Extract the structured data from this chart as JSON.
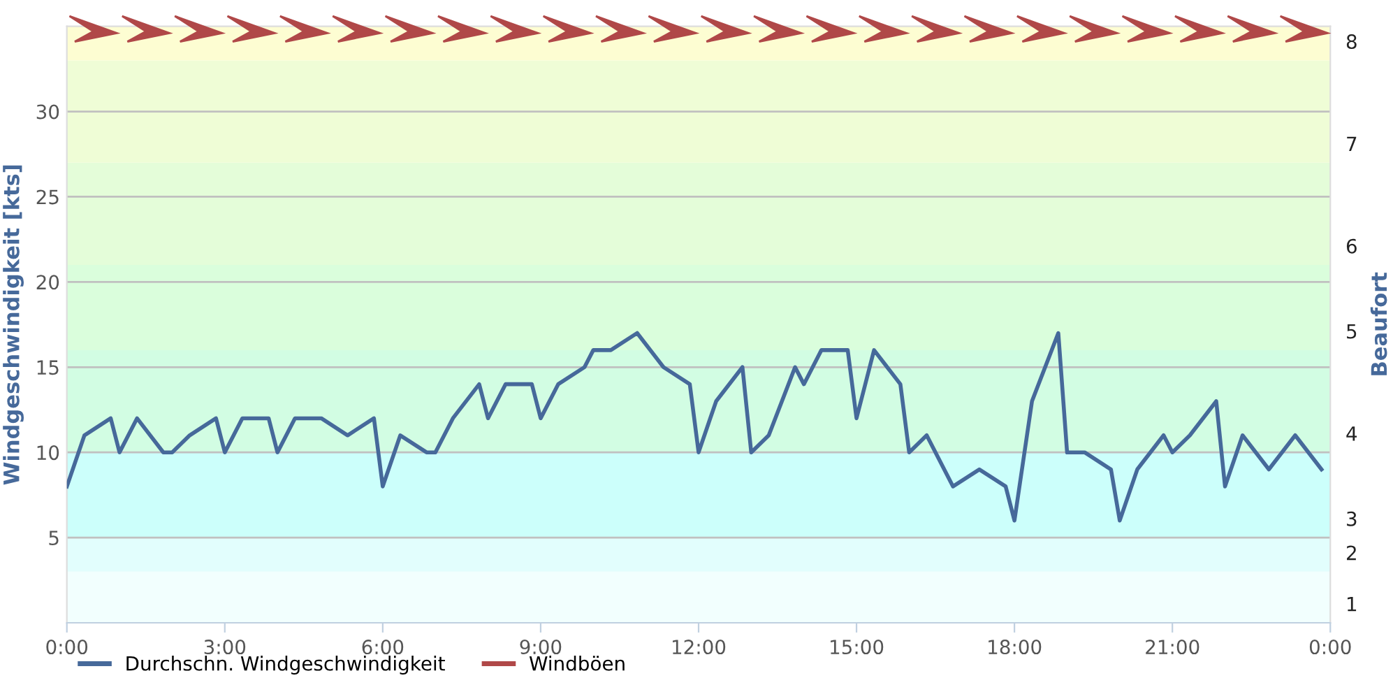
{
  "chart_data": {
    "type": "line",
    "ylabel": "Windgeschwindigkeit [kts]",
    "y2label": "Beaufort",
    "xlim": [
      0,
      24
    ],
    "xticks": [
      {
        "value": 0,
        "label": "0:00"
      },
      {
        "value": 3,
        "label": "3:00"
      },
      {
        "value": 6,
        "label": "6:00"
      },
      {
        "value": 9,
        "label": "9:00"
      },
      {
        "value": 12,
        "label": "12:00"
      },
      {
        "value": 15,
        "label": "15:00"
      },
      {
        "value": 18,
        "label": "18:00"
      },
      {
        "value": 21,
        "label": "21:00"
      },
      {
        "value": 24,
        "label": "0:00"
      }
    ],
    "ylim": [
      0,
      35
    ],
    "yticks": [
      5,
      10,
      15,
      20,
      25,
      30
    ],
    "grid": "y",
    "legend": "bottom left",
    "marker": "none",
    "line_style": "solid",
    "bands": [
      {
        "axis": "y",
        "from": 0,
        "to": 3,
        "color": "#f2fffe",
        "label": "1"
      },
      {
        "axis": "y",
        "from": 3,
        "to": 5,
        "color": "#e2fefd",
        "label": "2"
      },
      {
        "axis": "y",
        "from": 5,
        "to": 10,
        "color": "#ccfffb",
        "label": "3"
      },
      {
        "axis": "y",
        "from": 10,
        "to": 16,
        "color": "#d2fde3",
        "label": "4"
      },
      {
        "axis": "y",
        "from": 16,
        "to": 21,
        "color": "#dafedc",
        "label": "5"
      },
      {
        "axis": "y",
        "from": 21,
        "to": 27,
        "color": "#e4fdd9",
        "label": "6"
      },
      {
        "axis": "y",
        "from": 27,
        "to": 33,
        "color": "#effdd6",
        "label": "7"
      },
      {
        "axis": "y",
        "from": 33,
        "to": 35,
        "color": "#fdfdd2",
        "label": "8"
      }
    ],
    "series": [
      {
        "name": "Durchschn. Windgeschwindigkeit",
        "color": "#46699a",
        "x": [
          0,
          0.333,
          0.833,
          1,
          1.333,
          1.833,
          2,
          2.333,
          2.833,
          3,
          3.333,
          3.833,
          4,
          4.333,
          4.833,
          5.333,
          5.833,
          6,
          6.333,
          6.833,
          7,
          7.333,
          7.833,
          8,
          8.333,
          8.833,
          9,
          9.333,
          9.833,
          10,
          10.333,
          10.833,
          11.333,
          11.833,
          12,
          12.333,
          12.833,
          13,
          13.333,
          13.833,
          14,
          14.333,
          14.833,
          15,
          15.333,
          15.833,
          16,
          16.333,
          16.833,
          17.333,
          17.833,
          18,
          18.333,
          18.833,
          19,
          19.333,
          19.833,
          20,
          20.333,
          20.833,
          21,
          21.333,
          21.833,
          22,
          22.333,
          22.833,
          23.333,
          23.833
        ],
        "values": [
          8,
          11,
          12,
          10,
          12,
          10,
          10,
          11,
          12,
          10,
          12,
          12,
          10,
          12,
          12,
          11,
          12,
          8,
          11,
          10,
          10,
          12,
          14,
          12,
          14,
          14,
          12,
          14,
          15,
          16,
          16,
          17,
          15,
          14,
          10,
          13,
          15,
          10,
          11,
          15,
          14,
          16,
          16,
          12,
          16,
          14,
          10,
          11,
          8,
          9,
          8,
          6,
          13,
          17,
          10,
          10,
          9,
          6,
          9,
          11,
          10,
          11,
          13,
          8,
          11,
          9,
          11,
          9
        ]
      },
      {
        "name": "Windböen",
        "color": "#b04848"
      }
    ]
  }
}
